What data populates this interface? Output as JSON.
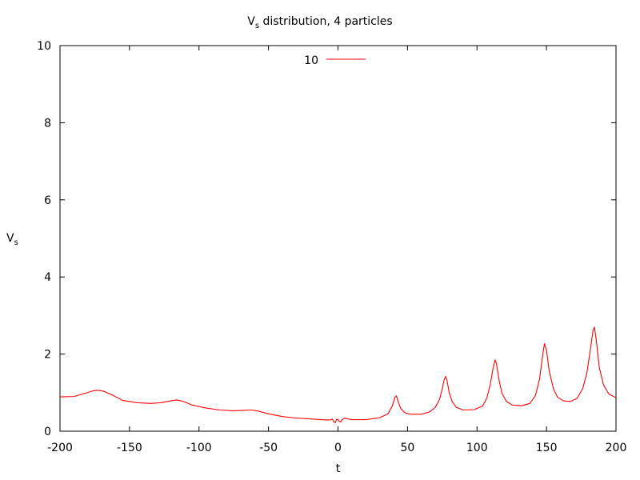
{
  "chart_data": {
    "type": "line",
    "title": {
      "main": "V",
      "sub": "s",
      "rest": " distribution, 4 particles"
    },
    "xlabel": "t",
    "ylabel": {
      "main": "V",
      "sub": "s"
    },
    "xlim": [
      -200,
      200
    ],
    "ylim": [
      0,
      10
    ],
    "xticks": [
      -200,
      -150,
      -100,
      -50,
      0,
      50,
      100,
      150,
      200
    ],
    "yticks": [
      0,
      2,
      4,
      6,
      8,
      10
    ],
    "legend_position": "top-center",
    "series": [
      {
        "name": "10",
        "color": "#ff0000",
        "points": [
          [
            -200,
            0.89
          ],
          [
            -190,
            0.9
          ],
          [
            -182,
            0.98
          ],
          [
            -176,
            1.05
          ],
          [
            -172,
            1.06
          ],
          [
            -168,
            1.03
          ],
          [
            -162,
            0.93
          ],
          [
            -155,
            0.8
          ],
          [
            -145,
            0.74
          ],
          [
            -135,
            0.72
          ],
          [
            -127,
            0.74
          ],
          [
            -120,
            0.79
          ],
          [
            -116,
            0.81
          ],
          [
            -112,
            0.78
          ],
          [
            -105,
            0.68
          ],
          [
            -95,
            0.6
          ],
          [
            -85,
            0.55
          ],
          [
            -75,
            0.53
          ],
          [
            -68,
            0.54
          ],
          [
            -62,
            0.55
          ],
          [
            -57,
            0.52
          ],
          [
            -50,
            0.45
          ],
          [
            -40,
            0.38
          ],
          [
            -30,
            0.34
          ],
          [
            -20,
            0.32
          ],
          [
            -12,
            0.3
          ],
          [
            -6,
            0.29
          ],
          [
            -4,
            0.31
          ],
          [
            -3,
            0.24
          ],
          [
            -2,
            0.22
          ],
          [
            -1,
            0.31
          ],
          [
            0,
            0.3
          ],
          [
            1,
            0.25
          ],
          [
            2,
            0.24
          ],
          [
            3,
            0.3
          ],
          [
            5,
            0.34
          ],
          [
            7,
            0.32
          ],
          [
            10,
            0.3
          ],
          [
            20,
            0.3
          ],
          [
            30,
            0.35
          ],
          [
            36,
            0.45
          ],
          [
            39,
            0.65
          ],
          [
            41,
            0.88
          ],
          [
            42,
            0.92
          ],
          [
            43,
            0.8
          ],
          [
            45,
            0.6
          ],
          [
            48,
            0.48
          ],
          [
            52,
            0.44
          ],
          [
            60,
            0.44
          ],
          [
            66,
            0.5
          ],
          [
            70,
            0.62
          ],
          [
            73,
            0.82
          ],
          [
            75,
            1.1
          ],
          [
            76.5,
            1.35
          ],
          [
            77.5,
            1.42
          ],
          [
            78.5,
            1.3
          ],
          [
            80,
            1.0
          ],
          [
            82,
            0.78
          ],
          [
            85,
            0.62
          ],
          [
            90,
            0.55
          ],
          [
            98,
            0.56
          ],
          [
            104,
            0.65
          ],
          [
            107,
            0.85
          ],
          [
            109.5,
            1.2
          ],
          [
            111.5,
            1.62
          ],
          [
            113,
            1.85
          ],
          [
            114,
            1.75
          ],
          [
            116,
            1.3
          ],
          [
            118,
            0.98
          ],
          [
            121,
            0.78
          ],
          [
            125,
            0.68
          ],
          [
            132,
            0.66
          ],
          [
            138,
            0.72
          ],
          [
            142,
            0.92
          ],
          [
            145,
            1.35
          ],
          [
            147,
            1.9
          ],
          [
            148.5,
            2.27
          ],
          [
            150,
            2.1
          ],
          [
            152,
            1.55
          ],
          [
            155,
            1.1
          ],
          [
            158,
            0.88
          ],
          [
            162,
            0.79
          ],
          [
            167,
            0.77
          ],
          [
            172,
            0.85
          ],
          [
            176,
            1.1
          ],
          [
            179,
            1.5
          ],
          [
            181.5,
            2.1
          ],
          [
            183.5,
            2.62
          ],
          [
            184.5,
            2.7
          ],
          [
            186,
            2.3
          ],
          [
            188,
            1.65
          ],
          [
            191,
            1.2
          ],
          [
            195,
            0.96
          ],
          [
            200,
            0.87
          ]
        ]
      }
    ]
  }
}
